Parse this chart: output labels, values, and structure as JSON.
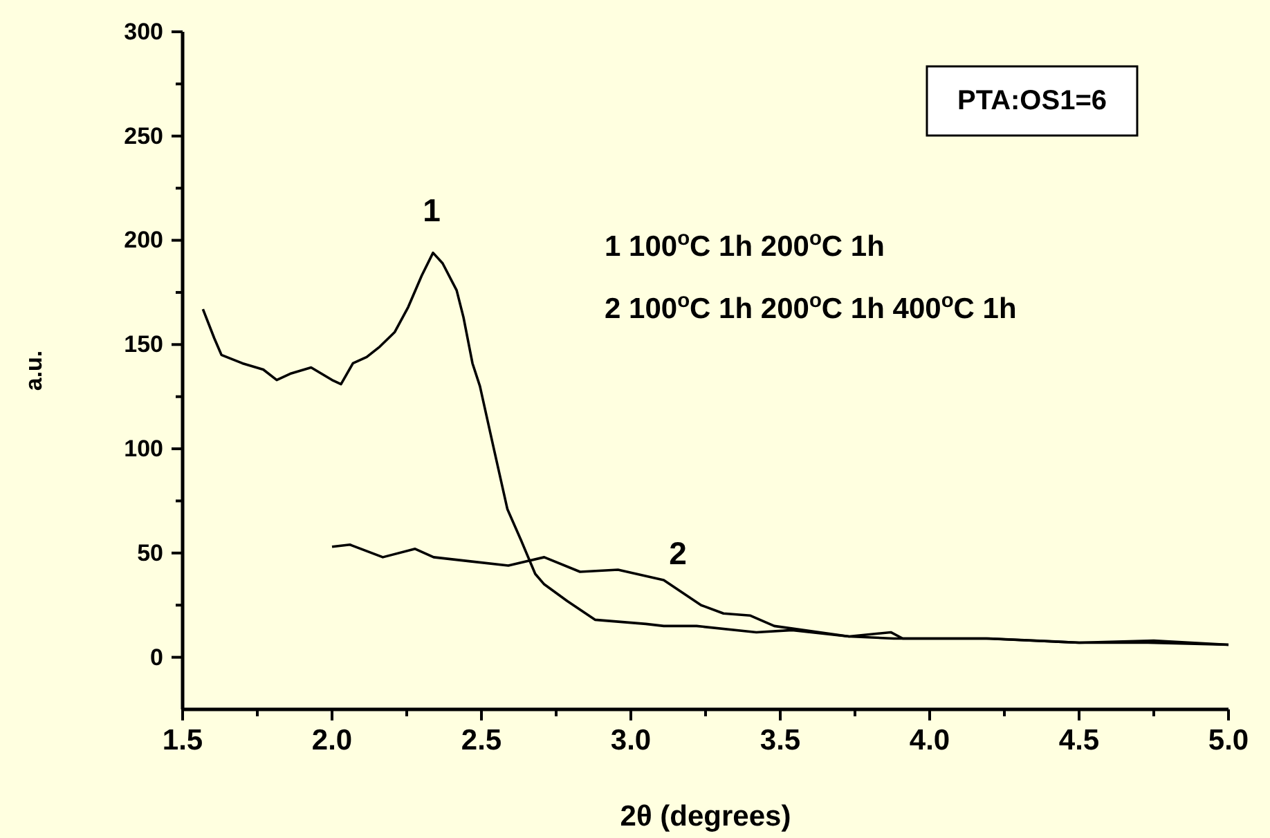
{
  "chart_data": {
    "type": "line",
    "xlabel": "2θ (degrees)",
    "ylabel": "a.u.",
    "xlim": [
      1.5,
      5.0
    ],
    "xticks": [
      1.5,
      {
        "value": 1.75,
        "label": null
      },
      "2.0",
      {
        "value": 2.25,
        "label": null
      },
      2.5,
      {
        "value": 2.75,
        "label": null
      },
      "3.0",
      {
        "value": 3.25,
        "label": null
      },
      3.5,
      {
        "value": 3.75,
        "label": null
      },
      "4.0",
      {
        "value": 4.25,
        "label": null
      },
      4.5,
      {
        "value": 4.75,
        "label": null
      },
      "5.0"
    ],
    "ylim": [
      -25,
      300
    ],
    "yticks": [
      0,
      {
        "value": 25,
        "label": null
      },
      50,
      {
        "value": 75,
        "label": null
      },
      100,
      {
        "value": 125,
        "label": null
      },
      150,
      {
        "value": 175,
        "label": null
      },
      200,
      {
        "value": 225,
        "label": null
      },
      250,
      {
        "value": 275,
        "label": null
      },
      300
    ],
    "grid": false,
    "line_style": "solid",
    "marker": "none",
    "series": [
      {
        "color": "#000000",
        "x": [
          1.568,
          1.606,
          1.63,
          1.7,
          1.77,
          1.815,
          1.86,
          1.93,
          2.0,
          2.03,
          2.07,
          2.116,
          2.16,
          2.21,
          2.255,
          2.3,
          2.338,
          2.37,
          2.417,
          2.44,
          2.47,
          2.495,
          2.54,
          2.587,
          2.633,
          2.68,
          2.71,
          2.787,
          2.88,
          3.05,
          3.11,
          3.22,
          3.42,
          3.54,
          3.73,
          3.88,
          4.19,
          4.5,
          4.73,
          5.0
        ],
        "values": [
          167,
          153,
          145,
          141,
          138,
          133,
          136,
          139,
          133,
          131,
          141,
          144,
          149,
          156,
          168,
          183,
          194,
          189,
          176,
          163,
          141,
          130,
          101,
          71,
          56,
          40,
          35,
          27,
          18,
          16,
          15,
          15,
          12,
          13,
          10,
          9,
          9,
          7,
          7,
          6
        ]
      },
      {
        "color": "#000000",
        "x": [
          2.0,
          2.06,
          2.17,
          2.278,
          2.34,
          2.463,
          2.59,
          2.71,
          2.83,
          2.957,
          3.11,
          3.235,
          3.31,
          3.4,
          3.48,
          3.73,
          3.87,
          3.91,
          4.2,
          4.5,
          4.75,
          5.0
        ],
        "values": [
          53,
          54,
          48,
          52,
          48,
          46,
          44,
          48,
          41,
          42,
          37,
          25,
          21,
          20,
          15,
          10,
          12,
          9,
          9,
          7,
          8,
          6
        ]
      }
    ],
    "annotations": [
      "1",
      "2",
      "PTA:OS1=6",
      "1 100$^{o}$C 1h 200$^{o}$C 1h",
      "2 100$^{o}$C 1h 200$^{o}$C 1h 400$^{o}$C 1h"
    ]
  }
}
